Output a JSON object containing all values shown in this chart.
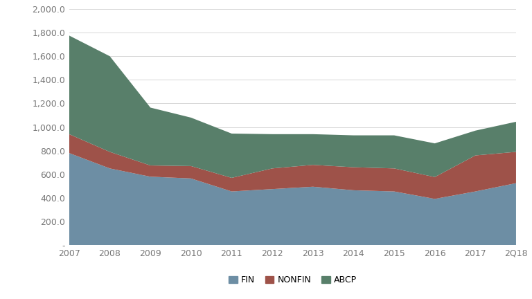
{
  "years": [
    "2007",
    "2008",
    "2009",
    "2010",
    "2011",
    "2012",
    "2013",
    "2014",
    "2015",
    "2016",
    "2017",
    "2Q18"
  ],
  "FIN": [
    780,
    650,
    580,
    565,
    455,
    475,
    495,
    465,
    455,
    392,
    455,
    525
  ],
  "NONFIN": [
    160,
    140,
    95,
    105,
    115,
    175,
    185,
    195,
    195,
    185,
    305,
    265
  ],
  "ABCP": [
    835,
    810,
    490,
    410,
    375,
    290,
    260,
    270,
    280,
    285,
    210,
    255
  ],
  "fin_color": "#6d8ea4",
  "nonfin_color": "#9e5249",
  "abcp_color": "#587f6a",
  "bg_color": "#ffffff",
  "ylim": [
    0,
    2000
  ],
  "yticks": [
    0,
    200,
    400,
    600,
    800,
    1000,
    1200,
    1400,
    1600,
    1800,
    2000
  ],
  "ytick_labels": [
    "-",
    "200.0",
    "400.0",
    "600.0",
    "800.0",
    "1,000.0",
    "1,200.0",
    "1,400.0",
    "1,600.0",
    "1,800.0",
    "2,000.0"
  ],
  "legend_labels": [
    "FIN",
    "NONFIN",
    "ABCP"
  ],
  "grid_color": "#d0d0d0",
  "tick_color": "#777777",
  "legend_fontsize": 9,
  "tick_fontsize": 9
}
